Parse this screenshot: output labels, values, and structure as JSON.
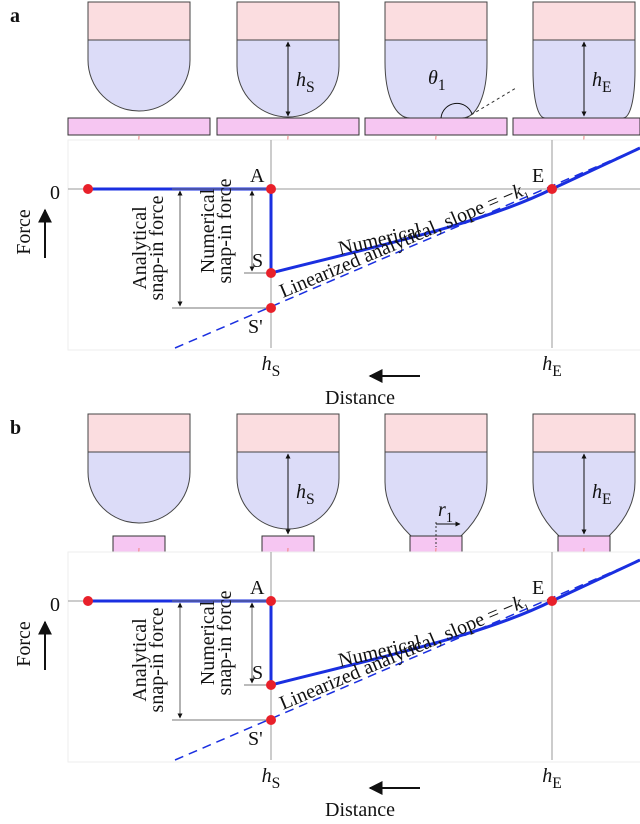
{
  "panels": [
    {
      "label": "a",
      "inset_labels": [
        {
          "base": "h",
          "sub": "S"
        },
        {
          "base": "θ",
          "sub": "1"
        },
        {
          "base": "h",
          "sub": "E"
        }
      ],
      "zero_label": "0",
      "point_labels": [
        "A",
        "E",
        "S",
        "S'"
      ],
      "y_axis_label": "Force",
      "x_axis_label": "Distance",
      "x_ticks": [
        {
          "base": "h",
          "sub": "S"
        },
        {
          "base": "h",
          "sub": "E"
        }
      ],
      "numerical_label": "Numerical",
      "slope_label": {
        "text": "Linearized analytical, slope = −",
        "base": "k",
        "sub": "1"
      },
      "analytical_bracket": [
        "Analytical",
        "snap-in force"
      ],
      "numerical_bracket": [
        "Numerical",
        "snap-in force"
      ]
    },
    {
      "label": "b",
      "inset_labels": [
        {
          "base": "h",
          "sub": "S"
        },
        {
          "base": "r",
          "sub": "1"
        },
        {
          "base": "h",
          "sub": "E"
        }
      ],
      "zero_label": "0",
      "point_labels": [
        "A",
        "E",
        "S",
        "S'"
      ],
      "y_axis_label": "Force",
      "x_axis_label": "Distance",
      "x_ticks": [
        {
          "base": "h",
          "sub": "S"
        },
        {
          "base": "h",
          "sub": "E"
        }
      ],
      "numerical_label": "Numerical",
      "slope_label": {
        "text": "Linearized analytical, slope = −",
        "base": "k",
        "sub": "1"
      },
      "analytical_bracket": [
        "Analytical",
        "snap-in force"
      ],
      "numerical_bracket": [
        "Numerical",
        "snap-in force"
      ]
    }
  ]
}
